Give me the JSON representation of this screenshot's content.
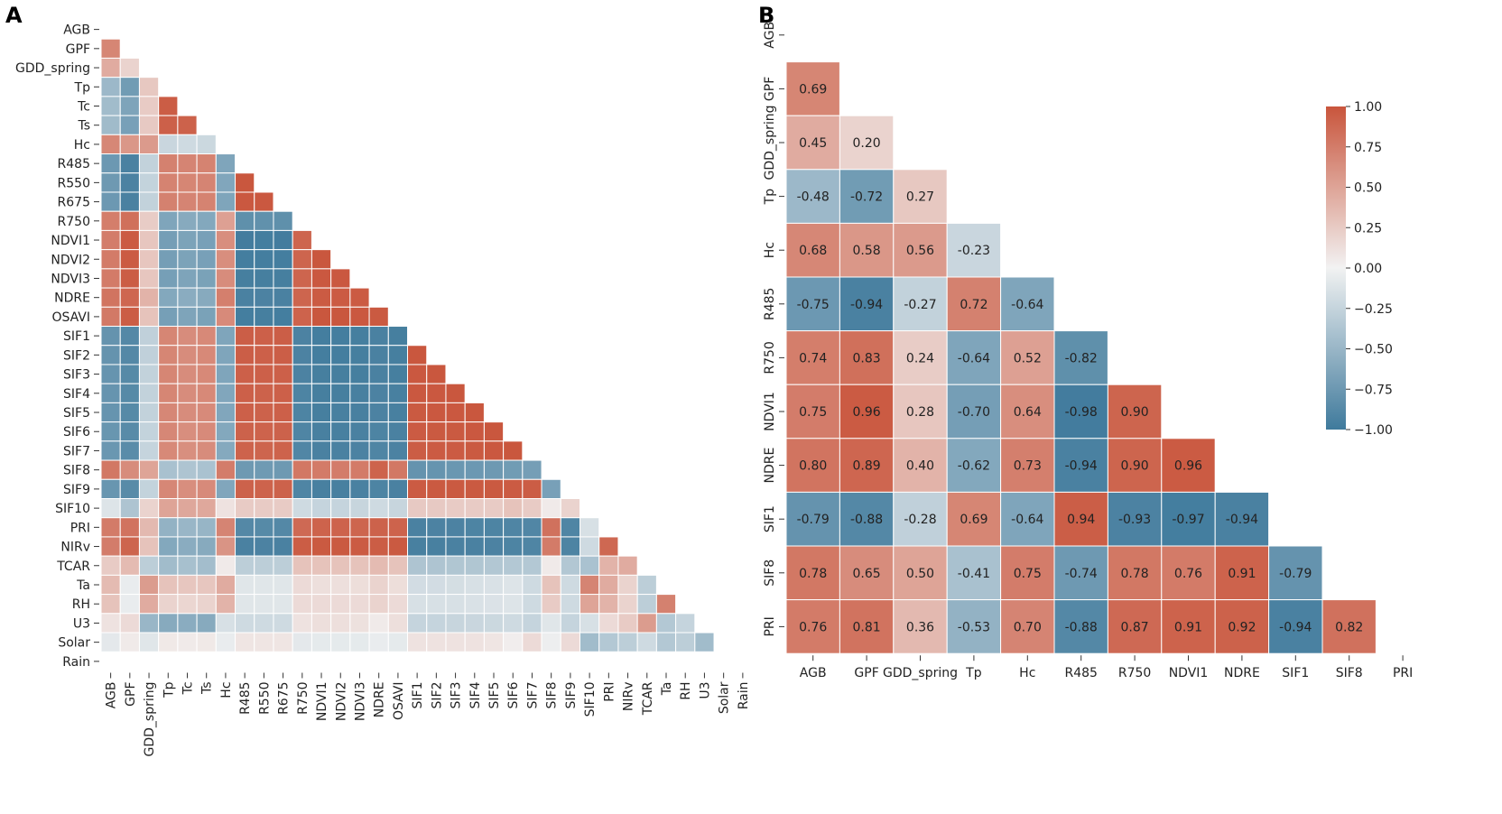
{
  "chart_data": [
    {
      "panel": "A",
      "type": "heatmap",
      "variables": [
        "AGB",
        "GPF",
        "GDD_spring",
        "Tp",
        "Tc",
        "Ts",
        "Hc",
        "R485",
        "R550",
        "R675",
        "R750",
        "NDVI1",
        "NDVI2",
        "NDVI3",
        "NDRE",
        "OSAVI",
        "SIF1",
        "SIF2",
        "SIF3",
        "SIF4",
        "SIF5",
        "SIF6",
        "SIF7",
        "SIF8",
        "SIF9",
        "SIF10",
        "PRI",
        "NIRv",
        "TCAR",
        "Ta",
        "RH",
        "U3",
        "Solar",
        "Rain"
      ],
      "values": [
        [],
        [
          0.69
        ],
        [
          0.45,
          0.2
        ],
        [
          -0.48,
          -0.72,
          0.27
        ],
        [
          -0.45,
          -0.65,
          0.25,
          0.95
        ],
        [
          -0.46,
          -0.68,
          0.26,
          0.93,
          0.92
        ],
        [
          0.68,
          0.58,
          0.56,
          -0.23,
          -0.2,
          -0.22
        ],
        [
          -0.75,
          -0.94,
          -0.27,
          0.72,
          0.7,
          0.71,
          -0.64
        ],
        [
          -0.74,
          -0.93,
          -0.26,
          0.71,
          0.69,
          0.7,
          -0.63,
          0.99
        ],
        [
          -0.75,
          -0.94,
          -0.27,
          0.72,
          0.7,
          0.71,
          -0.64,
          0.98,
          0.98
        ],
        [
          0.74,
          0.83,
          0.24,
          -0.64,
          -0.6,
          -0.62,
          0.52,
          -0.82,
          -0.81,
          -0.82
        ],
        [
          0.75,
          0.96,
          0.28,
          -0.7,
          -0.66,
          -0.68,
          0.64,
          -0.98,
          -0.97,
          -0.98,
          0.9
        ],
        [
          0.76,
          0.96,
          0.28,
          -0.7,
          -0.66,
          -0.68,
          0.64,
          -0.97,
          -0.97,
          -0.97,
          0.9,
          0.99
        ],
        [
          0.76,
          0.95,
          0.28,
          -0.69,
          -0.65,
          -0.67,
          0.65,
          -0.96,
          -0.96,
          -0.96,
          0.9,
          0.98,
          0.98
        ],
        [
          0.8,
          0.89,
          0.4,
          -0.62,
          -0.58,
          -0.6,
          0.73,
          -0.94,
          -0.93,
          -0.94,
          0.9,
          0.96,
          0.96,
          0.96
        ],
        [
          0.77,
          0.95,
          0.3,
          -0.69,
          -0.65,
          -0.67,
          0.66,
          -0.97,
          -0.96,
          -0.97,
          0.91,
          0.99,
          0.99,
          0.98,
          0.97
        ],
        [
          -0.79,
          -0.88,
          -0.28,
          0.69,
          0.65,
          0.67,
          -0.64,
          0.94,
          0.93,
          0.94,
          -0.93,
          -0.97,
          -0.97,
          -0.96,
          -0.94,
          -0.96
        ],
        [
          -0.79,
          -0.88,
          -0.28,
          0.69,
          0.65,
          0.67,
          -0.64,
          0.94,
          0.93,
          0.94,
          -0.93,
          -0.97,
          -0.97,
          -0.96,
          -0.94,
          -0.96,
          0.99
        ],
        [
          -0.78,
          -0.87,
          -0.27,
          0.69,
          0.65,
          0.67,
          -0.64,
          0.93,
          0.93,
          0.93,
          -0.93,
          -0.96,
          -0.96,
          -0.96,
          -0.94,
          -0.96,
          0.98,
          0.99
        ],
        [
          -0.78,
          -0.87,
          -0.27,
          0.69,
          0.65,
          0.67,
          -0.63,
          0.93,
          0.92,
          0.93,
          -0.92,
          -0.96,
          -0.96,
          -0.95,
          -0.93,
          -0.95,
          0.98,
          0.98,
          0.99
        ],
        [
          -0.78,
          -0.87,
          -0.27,
          0.68,
          0.65,
          0.66,
          -0.63,
          0.93,
          0.92,
          0.93,
          -0.92,
          -0.96,
          -0.95,
          -0.95,
          -0.93,
          -0.95,
          0.97,
          0.98,
          0.98,
          0.99
        ],
        [
          -0.77,
          -0.86,
          -0.26,
          0.68,
          0.64,
          0.66,
          -0.62,
          0.92,
          0.91,
          0.92,
          -0.91,
          -0.95,
          -0.95,
          -0.94,
          -0.92,
          -0.94,
          0.96,
          0.97,
          0.97,
          0.98,
          0.99
        ],
        [
          -0.76,
          -0.85,
          -0.25,
          0.67,
          0.63,
          0.65,
          -0.61,
          0.91,
          0.9,
          0.91,
          -0.9,
          -0.94,
          -0.94,
          -0.93,
          -0.91,
          -0.93,
          0.95,
          0.96,
          0.96,
          0.97,
          0.98,
          0.99
        ],
        [
          0.78,
          0.65,
          0.5,
          -0.41,
          -0.38,
          -0.4,
          0.75,
          -0.74,
          -0.73,
          -0.74,
          0.78,
          0.76,
          0.75,
          0.76,
          0.91,
          0.78,
          -0.79,
          -0.78,
          -0.76,
          -0.75,
          -0.74,
          -0.72,
          -0.7
        ],
        [
          -0.77,
          -0.86,
          -0.26,
          0.68,
          0.64,
          0.66,
          -0.63,
          0.92,
          0.91,
          0.92,
          -0.91,
          -0.95,
          -0.95,
          -0.94,
          -0.92,
          -0.94,
          0.96,
          0.97,
          0.97,
          0.97,
          0.97,
          0.96,
          0.95,
          -0.68
        ],
        [
          -0.12,
          -0.38,
          0.2,
          0.5,
          0.48,
          0.47,
          0.1,
          0.25,
          0.25,
          0.25,
          -0.2,
          -0.25,
          -0.25,
          -0.24,
          -0.2,
          -0.24,
          0.26,
          0.26,
          0.25,
          0.25,
          0.25,
          0.3,
          0.25,
          0.05,
          0.2
        ],
        [
          0.76,
          0.81,
          0.36,
          -0.53,
          -0.5,
          -0.51,
          0.7,
          -0.88,
          -0.87,
          -0.88,
          0.87,
          0.91,
          0.91,
          0.9,
          0.92,
          0.91,
          -0.94,
          -0.93,
          -0.93,
          -0.92,
          -0.92,
          -0.91,
          -0.9,
          0.82,
          -0.91,
          -0.15
        ],
        [
          0.75,
          0.9,
          0.3,
          -0.62,
          -0.58,
          -0.6,
          0.6,
          -0.94,
          -0.93,
          -0.94,
          0.95,
          0.97,
          0.97,
          0.96,
          0.95,
          0.97,
          -0.95,
          -0.95,
          -0.94,
          -0.94,
          -0.93,
          -0.92,
          -0.91,
          0.76,
          -0.92,
          -0.2,
          0.88
        ],
        [
          0.25,
          0.35,
          -0.3,
          -0.45,
          -0.42,
          -0.44,
          0.05,
          -0.3,
          -0.3,
          -0.3,
          0.3,
          0.3,
          0.3,
          0.3,
          0.35,
          0.3,
          -0.38,
          -0.38,
          -0.37,
          -0.37,
          -0.36,
          -0.35,
          -0.35,
          0.05,
          -0.36,
          -0.4,
          0.4,
          0.45
        ],
        [
          0.35,
          -0.05,
          0.55,
          0.3,
          0.28,
          0.28,
          0.45,
          -0.1,
          -0.1,
          -0.1,
          0.15,
          0.12,
          0.12,
          0.13,
          0.2,
          0.13,
          -0.18,
          -0.18,
          -0.17,
          -0.15,
          -0.14,
          -0.12,
          -0.2,
          0.3,
          -0.2,
          0.7,
          0.45,
          0.2,
          -0.3
        ],
        [
          0.3,
          -0.05,
          0.45,
          0.2,
          0.18,
          0.2,
          0.4,
          -0.1,
          -0.1,
          -0.1,
          0.15,
          0.15,
          0.15,
          0.15,
          0.2,
          0.15,
          -0.15,
          -0.15,
          -0.15,
          -0.14,
          -0.13,
          -0.12,
          -0.2,
          0.25,
          -0.2,
          0.5,
          0.4,
          0.2,
          -0.3,
          0.72
        ],
        [
          0.1,
          0.15,
          -0.5,
          -0.6,
          -0.58,
          -0.6,
          -0.15,
          -0.2,
          -0.2,
          -0.2,
          0.1,
          0.12,
          0.12,
          0.11,
          0.05,
          0.12,
          -0.25,
          -0.25,
          -0.24,
          -0.23,
          -0.22,
          -0.2,
          -0.25,
          -0.1,
          -0.25,
          -0.15,
          0.15,
          0.25,
          0.55,
          -0.35,
          -0.25
        ],
        [
          -0.08,
          0.05,
          -0.1,
          0.06,
          0.05,
          0.06,
          -0.05,
          0.08,
          0.08,
          0.08,
          -0.08,
          -0.07,
          -0.07,
          -0.07,
          -0.05,
          -0.07,
          0.1,
          0.1,
          0.1,
          0.1,
          0.08,
          0.03,
          0.15,
          -0.03,
          0.15,
          -0.45,
          -0.35,
          -0.3,
          -0.2,
          -0.35,
          -0.3,
          -0.45
        ],
        []
      ]
    },
    {
      "panel": "B",
      "type": "heatmap",
      "variables": [
        "AGB",
        "GPF",
        "GDD_spring",
        "Tp",
        "Hc",
        "R485",
        "R750",
        "NDVI1",
        "NDRE",
        "SIF1",
        "SIF8",
        "PRI"
      ],
      "values": [
        [],
        [
          0.69
        ],
        [
          0.45,
          0.2
        ],
        [
          -0.48,
          -0.72,
          0.27
        ],
        [
          0.68,
          0.58,
          0.56,
          -0.23
        ],
        [
          -0.75,
          -0.94,
          -0.27,
          0.72,
          -0.64
        ],
        [
          0.74,
          0.83,
          0.24,
          -0.64,
          0.52,
          -0.82
        ],
        [
          0.75,
          0.96,
          0.28,
          -0.7,
          0.64,
          -0.98,
          0.9
        ],
        [
          0.8,
          0.89,
          0.4,
          -0.62,
          0.73,
          -0.94,
          0.9,
          0.96
        ],
        [
          -0.79,
          -0.88,
          -0.28,
          0.69,
          -0.64,
          0.94,
          -0.93,
          -0.97,
          -0.94
        ],
        [
          0.78,
          0.65,
          0.5,
          -0.41,
          0.75,
          -0.74,
          0.78,
          0.76,
          0.91,
          -0.79
        ],
        [
          0.76,
          0.81,
          0.36,
          -0.53,
          0.7,
          -0.88,
          0.87,
          0.91,
          0.92,
          -0.94,
          0.82
        ]
      ],
      "colorbar": {
        "range": [
          -1,
          1
        ],
        "ticks": [
          "1.00",
          "0.75",
          "0.50",
          "0.25",
          "0.00",
          "−0.25",
          "−0.50",
          "−0.75",
          "−1.00"
        ]
      }
    }
  ],
  "panel_labels": {
    "a": "A",
    "b": "B"
  },
  "colors": {
    "negative": "#3f7a9c",
    "mid": "#f2f2f2",
    "positive": "#c9553c"
  }
}
